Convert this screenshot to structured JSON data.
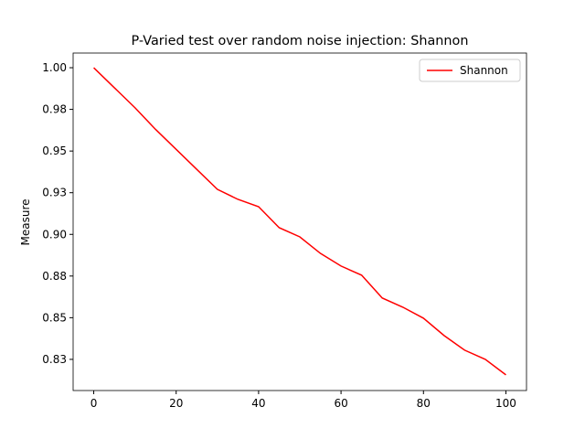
{
  "chart_data": {
    "type": "line",
    "title": "P-Varied test over random noise injection: Shannon",
    "ylabel": "Measure",
    "x": [
      0,
      5,
      10,
      15,
      20,
      25,
      30,
      35,
      40,
      45,
      50,
      55,
      60,
      65,
      70,
      75,
      80,
      85,
      90,
      95,
      100
    ],
    "series": [
      {
        "name": "Shannon",
        "color": "#ff0000",
        "values": [
          1.0,
          0.988,
          0.976,
          0.963,
          0.951,
          0.939,
          0.927,
          0.921,
          0.9166,
          0.904,
          0.8985,
          0.8886,
          0.881,
          0.8755,
          0.8618,
          0.8563,
          0.8497,
          0.8393,
          0.8305,
          0.825,
          0.8157
        ]
      }
    ],
    "xlim": [
      -5,
      105
    ],
    "xticks": [
      0,
      20,
      40,
      60,
      80,
      100
    ],
    "ylim": [
      0.8063,
      1.0088
    ],
    "yticks": [
      {
        "value": 0.825,
        "label": "0.83"
      },
      0.85,
      {
        "value": 0.875,
        "label": "0.88"
      },
      {
        "value": 0.9,
        "label": "0.90"
      },
      {
        "value": 0.925,
        "label": "0.93"
      },
      0.95,
      {
        "value": 0.975,
        "label": "0.98"
      },
      {
        "value": 1.0,
        "label": "1.00"
      }
    ],
    "legend": "upper right"
  }
}
